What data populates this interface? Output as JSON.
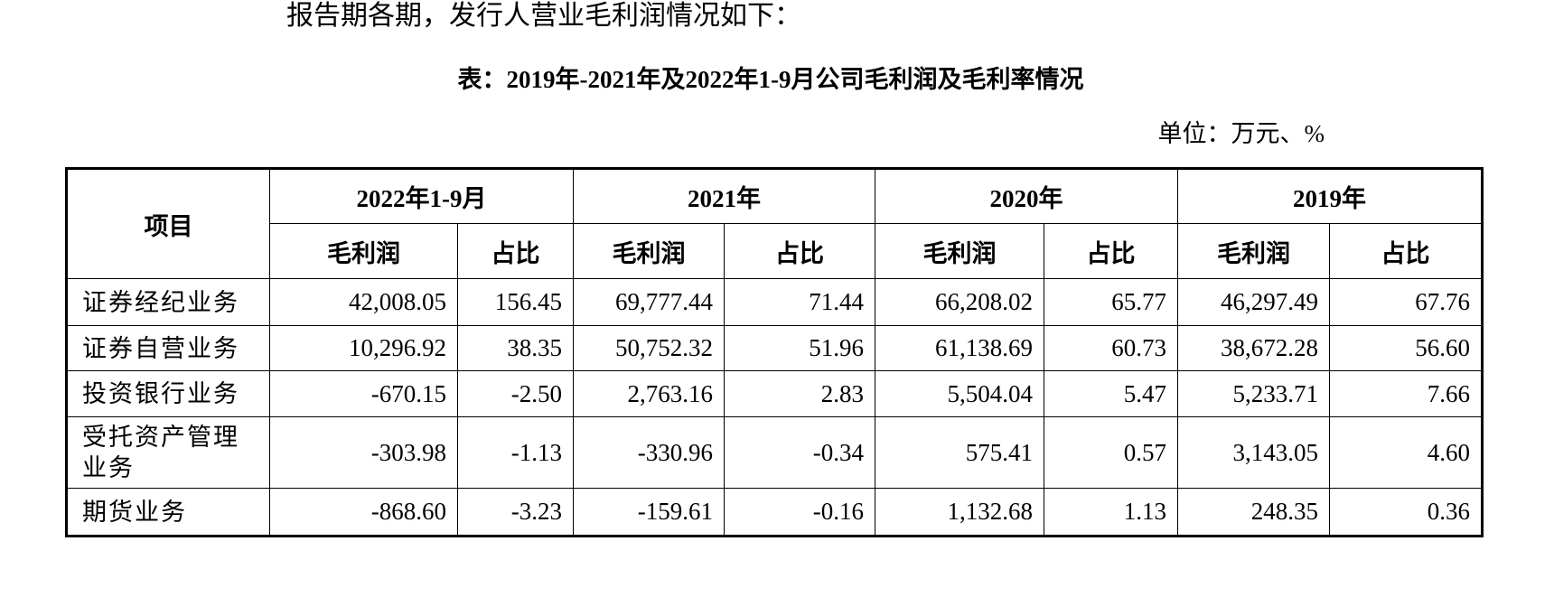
{
  "intro": "报告期各期，发行人营业毛利润情况如下：",
  "title": "表：2019年-2021年及2022年1-9月公司毛利润及毛利率情况",
  "unit": "单位：万元、%",
  "table": {
    "item_header": "项目",
    "periods": [
      "2022年1-9月",
      "2021年",
      "2020年",
      "2019年"
    ],
    "subheaders": [
      "毛利润",
      "占比"
    ],
    "rows": [
      [
        "证券经纪业务",
        "42,008.05",
        "156.45",
        "69,777.44",
        "71.44",
        "66,208.02",
        "65.77",
        "46,297.49",
        "67.76"
      ],
      [
        "证券自营业务",
        "10,296.92",
        "38.35",
        "50,752.32",
        "51.96",
        "61,138.69",
        "60.73",
        "38,672.28",
        "56.60"
      ],
      [
        "投资银行业务",
        "-670.15",
        "-2.50",
        "2,763.16",
        "2.83",
        "5,504.04",
        "5.47",
        "5,233.71",
        "7.66"
      ],
      [
        "受托资产管理业务",
        "-303.98",
        "-1.13",
        "-330.96",
        "-0.34",
        "575.41",
        "0.57",
        "3,143.05",
        "4.60"
      ],
      [
        "期货业务",
        "-868.60",
        "-3.23",
        "-159.61",
        "-0.16",
        "1,132.68",
        "1.13",
        "248.35",
        "0.36"
      ]
    ]
  }
}
